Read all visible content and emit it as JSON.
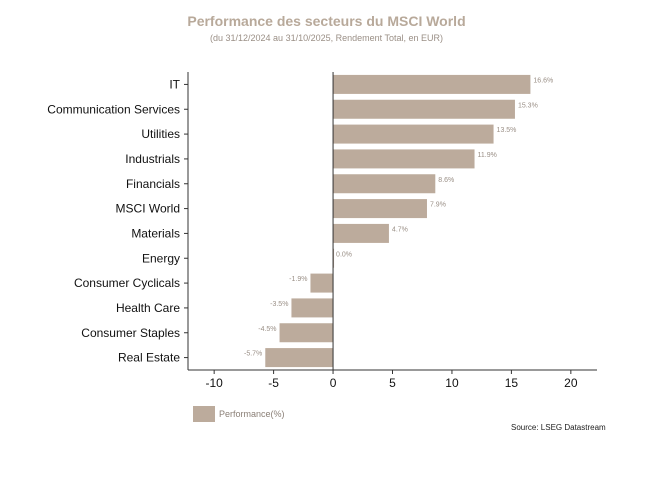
{
  "chart_data": {
    "type": "bar",
    "orientation": "horizontal",
    "title": "Performance des secteurs du MSCI World",
    "subtitle": "(du 31/12/2024 au 31/10/2025, Rendement Total, en EUR)",
    "categories": [
      "IT",
      "Communication Services",
      "Utilities",
      "Industrials",
      "Financials",
      "MSCI World",
      "Materials",
      "Energy",
      "Consumer Cyclicals",
      "Health Care",
      "Consumer Staples",
      "Real Estate"
    ],
    "series": [
      {
        "name": "Performance(%)",
        "values": [
          16.6,
          15.3,
          13.5,
          11.9,
          8.6,
          7.9,
          4.7,
          0.0,
          -1.9,
          -3.5,
          -4.5,
          -5.7
        ]
      }
    ],
    "data_labels": [
      "16.6%",
      "15.3%",
      "13.5%",
      "11.9%",
      "8.6%",
      "7.9%",
      "4.7%",
      "0.0%",
      "-1.9%",
      "-3.5%",
      "-4.5%",
      "-5.7%"
    ],
    "xticks": [
      -10,
      -5,
      0,
      5,
      10,
      15,
      20
    ],
    "xlim": [
      -12.2,
      22.2
    ],
    "xlabel": "",
    "ylabel": "",
    "grid": false,
    "legend": "bottom-left",
    "bar_color": "#bcab9c",
    "source": "Source: LSEG Datastream"
  }
}
